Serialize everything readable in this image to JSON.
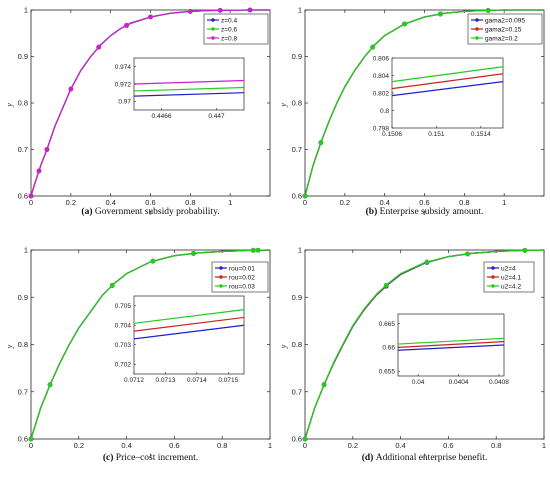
{
  "chart_data": [
    {
      "type": "line",
      "caption_label": "(a)",
      "caption": "Government subsidy probability.",
      "xlabel": "t",
      "ylabel": "y",
      "xlim": [
        0,
        1.2
      ],
      "ylim": [
        0.6,
        1.0
      ],
      "xticks": [
        0,
        0.2,
        0.4,
        0.6,
        0.8,
        1
      ],
      "xticklabels": [
        "0",
        "0.2",
        "0.4",
        "0.6",
        "0.8",
        "1"
      ],
      "yticks": [
        0.6,
        0.7,
        0.8,
        0.9,
        1.0
      ],
      "yticklabels": [
        "0.6",
        "0.7",
        "0.8",
        "0.9",
        "1"
      ],
      "legend_position": "top-right",
      "x": [
        0,
        0.02,
        0.05,
        0.08,
        0.12,
        0.16,
        0.2,
        0.25,
        0.3,
        0.35,
        0.4,
        0.45,
        0.5,
        0.6,
        0.7,
        0.8,
        0.9,
        1.0,
        1.1,
        1.2
      ],
      "series": [
        {
          "name": "z=0.4",
          "color": "#1f1fcc",
          "marker_x": [
            0,
            0.04,
            0.08,
            0.2,
            0.34,
            0.48,
            0.6,
            0.8,
            0.95,
            1.1
          ],
          "values": [
            0.6,
            0.628,
            0.667,
            0.7,
            0.75,
            0.79,
            0.83,
            0.87,
            0.9,
            0.925,
            0.945,
            0.96,
            0.971,
            0.985,
            0.993,
            0.997,
            0.999,
            0.9995,
            1.0,
            1.0
          ]
        },
        {
          "name": "z=0.6",
          "color": "#22cc22",
          "marker_x": [
            0,
            0.04,
            0.08,
            0.2,
            0.34,
            0.48,
            0.6,
            0.8,
            0.95,
            1.1
          ],
          "values": [
            0.6,
            0.628,
            0.667,
            0.7,
            0.75,
            0.79,
            0.83,
            0.87,
            0.9,
            0.925,
            0.945,
            0.96,
            0.9715,
            0.985,
            0.993,
            0.997,
            0.999,
            0.9995,
            1.0,
            1.0
          ]
        },
        {
          "name": "z=0.8",
          "color": "#d01fd0",
          "marker_x": [
            0,
            0.04,
            0.08,
            0.2,
            0.34,
            0.48,
            0.6,
            0.8,
            0.95,
            1.1
          ],
          "values": [
            0.6,
            0.628,
            0.667,
            0.7,
            0.75,
            0.79,
            0.83,
            0.87,
            0.9,
            0.925,
            0.945,
            0.96,
            0.972,
            0.985,
            0.993,
            0.997,
            0.999,
            0.9995,
            1.0,
            1.0
          ]
        }
      ],
      "inset": {
        "xlim": [
          0.4464,
          0.4472
        ],
        "ylim": [
          0.969,
          0.975
        ],
        "xticks": [
          0.4466,
          0.447
        ],
        "xticklabels": [
          "0.4466",
          "0.447"
        ],
        "yticks": [
          0.97,
          0.972,
          0.974
        ],
        "yticklabels": [
          "0.97",
          "0.972",
          "0.974"
        ],
        "lines": [
          {
            "color": "#1f1fcc",
            "y": [
              0.9706,
              0.971
            ]
          },
          {
            "color": "#22cc22",
            "y": [
              0.9712,
              0.9716
            ]
          },
          {
            "color": "#d01fd0",
            "y": [
              0.972,
              0.9724
            ]
          }
        ]
      }
    },
    {
      "type": "line",
      "caption_label": "(b)",
      "caption": "Enterprise subsidy amount.",
      "xlabel": "t",
      "ylabel": "y",
      "xlim": [
        0,
        1.2
      ],
      "ylim": [
        0.6,
        1.0
      ],
      "xticks": [
        0,
        0.2,
        0.4,
        0.6,
        0.8,
        1
      ],
      "xticklabels": [
        "0",
        "0.2",
        "0.4",
        "0.6",
        "0.8",
        "1"
      ],
      "yticks": [
        0.6,
        0.7,
        0.8,
        0.9,
        1.0
      ],
      "yticklabels": [
        "0.6",
        "0.7",
        "0.8",
        "0.9",
        "1"
      ],
      "legend_position": "top-right",
      "x": [
        0,
        0.04,
        0.08,
        0.12,
        0.16,
        0.2,
        0.25,
        0.3,
        0.35,
        0.4,
        0.5,
        0.6,
        0.7,
        0.8,
        0.9,
        1.0,
        1.1,
        1.2
      ],
      "series": [
        {
          "name": "gama2=0.095",
          "color": "#1f1fcc",
          "marker_x": [
            0,
            0.08,
            0.34,
            0.5,
            0.68,
            0.92
          ],
          "values": [
            0.6,
            0.665,
            0.715,
            0.76,
            0.8,
            0.835,
            0.87,
            0.9,
            0.925,
            0.945,
            0.97,
            0.985,
            0.993,
            0.997,
            0.999,
            1.0,
            1.0,
            1.0
          ]
        },
        {
          "name": "gama2=0.15",
          "color": "#cc2222",
          "marker_x": [
            0,
            0.08,
            0.34,
            0.5,
            0.68,
            0.92
          ],
          "values": [
            0.6,
            0.665,
            0.715,
            0.76,
            0.8,
            0.835,
            0.87,
            0.9,
            0.925,
            0.945,
            0.97,
            0.985,
            0.993,
            0.997,
            0.999,
            1.0,
            1.0,
            1.0
          ]
        },
        {
          "name": "gama2=0.2",
          "color": "#22cc22",
          "marker_x": [
            0,
            0.08,
            0.34,
            0.5,
            0.68,
            0.92
          ],
          "values": [
            0.6,
            0.665,
            0.715,
            0.76,
            0.8,
            0.835,
            0.87,
            0.9,
            0.925,
            0.945,
            0.97,
            0.985,
            0.993,
            0.997,
            0.999,
            1.0,
            1.0,
            1.0
          ]
        }
      ],
      "inset": {
        "xlim": [
          0.1506,
          0.1516
        ],
        "ylim": [
          0.798,
          0.806
        ],
        "xticks": [
          0.1506,
          0.151,
          0.1514
        ],
        "xticklabels": [
          "0.1506",
          "0.151",
          "0.1514"
        ],
        "yticks": [
          0.798,
          0.8,
          0.802,
          0.804,
          0.806
        ],
        "yticklabels": [
          "0.798",
          "0.8",
          "0.802",
          "0.804",
          "0.806"
        ],
        "lines": [
          {
            "color": "#1f1fcc",
            "y": [
              0.8017,
              0.8033
            ]
          },
          {
            "color": "#cc2222",
            "y": [
              0.8025,
              0.8042
            ]
          },
          {
            "color": "#22cc22",
            "y": [
              0.8033,
              0.805
            ]
          }
        ]
      }
    },
    {
      "type": "line",
      "caption_label": "(c)",
      "caption": "Price–cost increment.",
      "xlabel": "t",
      "ylabel": "y",
      "xlim": [
        0,
        1.0
      ],
      "ylim": [
        0.6,
        1.0
      ],
      "xticks": [
        0,
        0.2,
        0.4,
        0.6,
        0.8,
        1
      ],
      "xticklabels": [
        "0",
        "0.2",
        "0.4",
        "0.6",
        "0.8",
        "1"
      ],
      "yticks": [
        0.6,
        0.7,
        0.8,
        0.9,
        1.0
      ],
      "yticklabels": [
        "0.6",
        "0.7",
        "0.8",
        "0.9",
        "1"
      ],
      "legend_position": "top-right",
      "x": [
        0,
        0.04,
        0.08,
        0.12,
        0.16,
        0.2,
        0.25,
        0.3,
        0.35,
        0.4,
        0.5,
        0.6,
        0.7,
        0.8,
        0.9,
        1.0
      ],
      "series": [
        {
          "name": "rou=0.01",
          "color": "#1f1fcc",
          "marker_x": [
            0,
            0.08,
            0.34,
            0.51,
            0.68,
            0.93,
            0.95
          ],
          "values": [
            0.6,
            0.665,
            0.715,
            0.76,
            0.8,
            0.835,
            0.87,
            0.905,
            0.93,
            0.95,
            0.975,
            0.988,
            0.994,
            0.997,
            0.999,
            1.0
          ]
        },
        {
          "name": "rou=0.02",
          "color": "#cc2222",
          "marker_x": [
            0,
            0.08,
            0.34,
            0.51,
            0.68,
            0.93,
            0.95
          ],
          "values": [
            0.6,
            0.665,
            0.715,
            0.76,
            0.8,
            0.835,
            0.87,
            0.905,
            0.93,
            0.95,
            0.975,
            0.988,
            0.994,
            0.997,
            0.999,
            1.0
          ]
        },
        {
          "name": "rou=0.03",
          "color": "#22cc22",
          "marker_x": [
            0,
            0.08,
            0.34,
            0.51,
            0.68,
            0.93,
            0.95
          ],
          "values": [
            0.6,
            0.665,
            0.715,
            0.76,
            0.8,
            0.835,
            0.87,
            0.905,
            0.93,
            0.95,
            0.975,
            0.988,
            0.994,
            0.997,
            0.999,
            1.0
          ]
        }
      ],
      "inset": {
        "xlim": [
          0.0712,
          0.07155
        ],
        "ylim": [
          0.7015,
          0.7055
        ],
        "xticks": [
          0.0712,
          0.0713,
          0.0714,
          0.0715
        ],
        "xticklabels": [
          "0.0712",
          "0.0713",
          "0.0714",
          "0.0715"
        ],
        "yticks": [
          0.702,
          0.703,
          0.704,
          0.705
        ],
        "yticklabels": [
          "0.702",
          "0.703",
          "0.704",
          "0.705"
        ],
        "lines": [
          {
            "color": "#1f1fcc",
            "y": [
              0.7033,
              0.704
            ]
          },
          {
            "color": "#cc2222",
            "y": [
              0.7037,
              0.7044
            ]
          },
          {
            "color": "#22cc22",
            "y": [
              0.7041,
              0.7048
            ]
          }
        ]
      }
    },
    {
      "type": "line",
      "caption_label": "(d)",
      "caption": "Additional enterprise benefit.",
      "xlabel": "t",
      "ylabel": "y",
      "xlim": [
        0,
        1.0
      ],
      "ylim": [
        0.6,
        1.0
      ],
      "xticks": [
        0,
        0.2,
        0.4,
        0.6,
        0.8,
        1
      ],
      "xticklabels": [
        "0",
        "0.2",
        "0.4",
        "0.6",
        "0.8",
        "1"
      ],
      "yticks": [
        0.6,
        0.7,
        0.8,
        0.9,
        1.0
      ],
      "yticklabels": [
        "0.6",
        "0.7",
        "0.8",
        "0.9",
        "1"
      ],
      "legend_position": "top-right",
      "x": [
        0,
        0.04,
        0.08,
        0.12,
        0.16,
        0.2,
        0.25,
        0.3,
        0.35,
        0.4,
        0.5,
        0.6,
        0.7,
        0.8,
        0.9,
        1.0
      ],
      "series": [
        {
          "name": "u2=4",
          "color": "#1f1fcc",
          "marker_x": [
            0,
            0.08,
            0.34,
            0.51,
            0.68,
            0.92
          ],
          "values": [
            0.6,
            0.665,
            0.715,
            0.76,
            0.8,
            0.838,
            0.875,
            0.905,
            0.928,
            0.948,
            0.972,
            0.986,
            0.993,
            0.997,
            0.999,
            1.0
          ]
        },
        {
          "name": "u2=4.1",
          "color": "#cc2222",
          "marker_x": [
            0,
            0.08,
            0.34,
            0.51,
            0.68,
            0.92
          ],
          "values": [
            0.6,
            0.665,
            0.715,
            0.761,
            0.801,
            0.839,
            0.876,
            0.906,
            0.929,
            0.949,
            0.973,
            0.986,
            0.993,
            0.997,
            0.999,
            1.0
          ]
        },
        {
          "name": "u2=4.2",
          "color": "#22cc22",
          "marker_x": [
            0,
            0.08,
            0.34,
            0.51,
            0.68,
            0.92
          ],
          "values": [
            0.6,
            0.665,
            0.715,
            0.762,
            0.802,
            0.84,
            0.877,
            0.907,
            0.93,
            0.95,
            0.973,
            0.986,
            0.993,
            0.997,
            0.999,
            1.0
          ]
        }
      ],
      "inset": {
        "xlim": [
          0.0398,
          0.04085
        ],
        "ylim": [
          0.654,
          0.667
        ],
        "xticks": [
          0.04,
          0.0404,
          0.0408
        ],
        "xticklabels": [
          "0.04",
          "0.0404",
          "0.0408"
        ],
        "yticks": [
          0.655,
          0.66,
          0.665
        ],
        "yticklabels": [
          "0.655",
          "0.66",
          "0.665"
        ],
        "lines": [
          {
            "color": "#1f1fcc",
            "y": [
              0.6594,
              0.6605
            ]
          },
          {
            "color": "#cc2222",
            "y": [
              0.66,
              0.6612
            ]
          },
          {
            "color": "#22cc22",
            "y": [
              0.6607,
              0.6619
            ]
          }
        ]
      }
    }
  ]
}
